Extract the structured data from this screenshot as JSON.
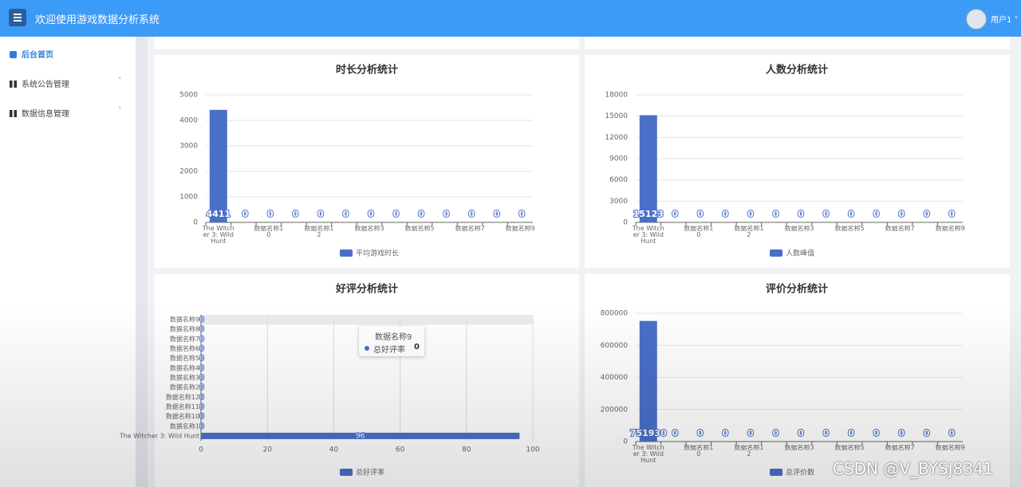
{
  "header": {
    "title": "欢迎使用游戏数据分析系统",
    "user": "用户1"
  },
  "sidebar": {
    "items": [
      "后台首页",
      "系统公告管理",
      "数据信息管理"
    ]
  },
  "chart_data": [
    {
      "type": "bar",
      "title": "时长分析统计",
      "categories": [
        "The Witcher 3: Wild Hunt",
        null,
        "数据名称10",
        null,
        "数据名称12",
        null,
        "数据名称3",
        null,
        "数据名称5",
        null,
        "数据名称7",
        null,
        "数据名称9"
      ],
      "series": [
        {
          "name": "平均游戏时长",
          "color": "#4a6fc9",
          "values": [
            4411,
            0,
            0,
            0,
            0,
            0,
            0,
            0,
            0,
            0,
            0,
            0,
            0
          ]
        }
      ],
      "ylim": [
        0,
        5000
      ],
      "yticks": [
        0,
        1000,
        2000,
        3000,
        4000,
        5000
      ],
      "grid": true
    },
    {
      "type": "bar",
      "title": "人数分析统计",
      "categories": [
        "The Witcher 3: Wild Hunt",
        null,
        "数据名称10",
        null,
        "数据名称12",
        null,
        "数据名称3",
        null,
        "数据名称5",
        null,
        "数据名称7",
        null,
        "数据名称9"
      ],
      "series": [
        {
          "name": "人数峰值",
          "color": "#4a6fc9",
          "values": [
            15123,
            0,
            0,
            0,
            0,
            0,
            0,
            0,
            0,
            0,
            0,
            0,
            0
          ]
        }
      ],
      "ylim": [
        0,
        18000
      ],
      "yticks": [
        0,
        3000,
        6000,
        9000,
        12000,
        15000,
        18000
      ],
      "grid": true
    },
    {
      "type": "hbar",
      "title": "好评分析统计",
      "categories": [
        "The Witcher 3: Wild Hunt",
        "数据名称1",
        "数据名称10",
        "数据名称11",
        "数据名称12",
        "数据名称2",
        "数据名称3",
        "数据名称4",
        "数据名称5",
        "数据名称6",
        "数据名称7",
        "数据名称8",
        "数据名称9"
      ],
      "series": [
        {
          "name": "总好评率",
          "color": "#4a6fc9",
          "values": [
            96,
            0,
            0,
            0,
            0,
            0,
            0,
            0,
            0,
            0,
            0,
            0,
            0
          ]
        }
      ],
      "xlim": [
        0,
        100
      ],
      "xticks": [
        0,
        20,
        40,
        60,
        80,
        100
      ],
      "grid": true,
      "tooltip": {
        "category": "数据名称9",
        "series": "总好评率",
        "value": 0
      }
    },
    {
      "type": "bar",
      "title": "评价分析统计",
      "categories": [
        "The Witcher 3: Wild Hunt",
        null,
        "数据名称10",
        null,
        "数据名称12",
        null,
        "数据名称3",
        null,
        "数据名称5",
        null,
        "数据名称7",
        null,
        "数据名称9"
      ],
      "series": [
        {
          "name": "总评价数",
          "color": "#4a6fc9",
          "values": [
            751930,
            0,
            0,
            0,
            0,
            0,
            0,
            0,
            0,
            0,
            0,
            0,
            0
          ]
        }
      ],
      "ylim": [
        0,
        800000
      ],
      "yticks": [
        0,
        200000,
        400000,
        600000,
        800000
      ],
      "grid": true
    }
  ],
  "watermark": "CSDN @V_BYSJ8341"
}
